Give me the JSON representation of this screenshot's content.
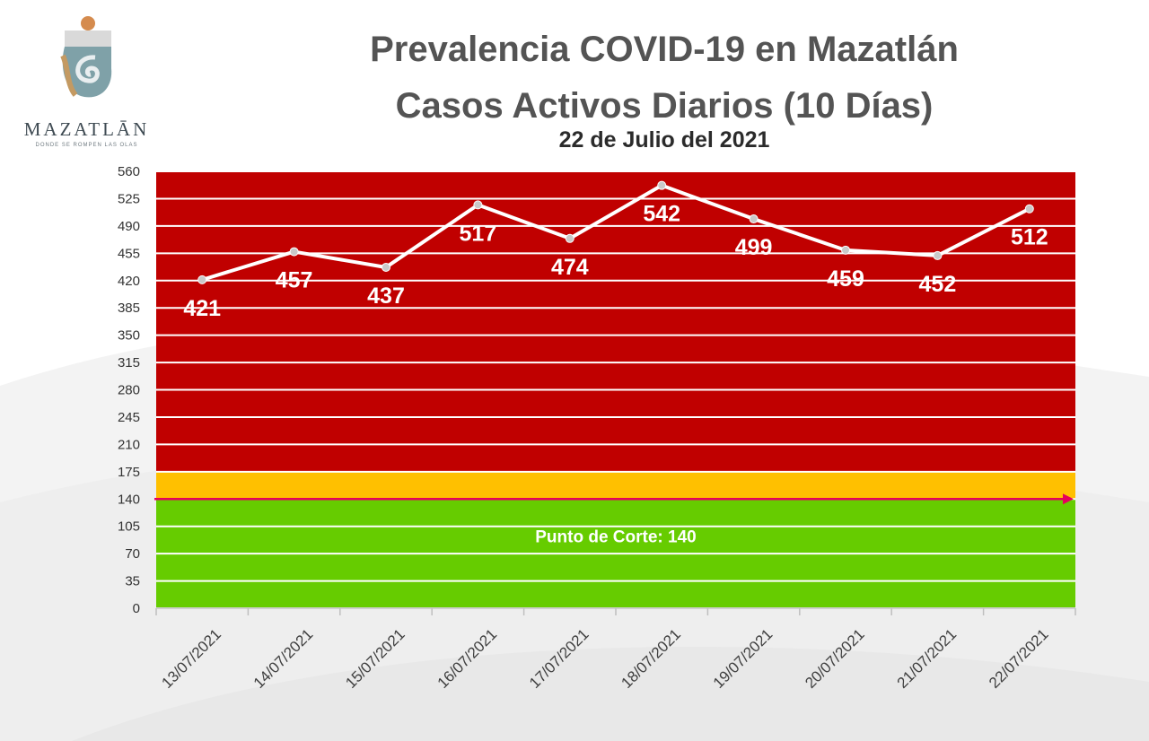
{
  "logo": {
    "name": "MAZATLĀN",
    "tagline": "DONDE SE ROMPEN LAS OLAS"
  },
  "header": {
    "title": "Prevalencia COVID-19 en Mazatlán",
    "subtitle": "Casos Activos Diarios (10 Días)",
    "date": "22 de Julio del 2021"
  },
  "colors": {
    "red_zone": "#c00000",
    "yellow_zone": "#ffc000",
    "green_zone": "#66cc00",
    "line": "#ffffff",
    "cutoff_line": "#e6005c"
  },
  "chart_data": {
    "type": "line",
    "title": "Casos Activos Diarios (10 Días)",
    "categories": [
      "13/07/2021",
      "14/07/2021",
      "15/07/2021",
      "16/07/2021",
      "17/07/2021",
      "18/07/2021",
      "19/07/2021",
      "20/07/2021",
      "21/07/2021",
      "22/07/2021"
    ],
    "series": [
      {
        "name": "Casos Activos",
        "values": [
          421,
          457,
          437,
          517,
          474,
          542,
          499,
          459,
          452,
          512
        ]
      }
    ],
    "yticks": [
      0,
      35,
      70,
      105,
      140,
      175,
      210,
      245,
      280,
      315,
      350,
      385,
      420,
      455,
      490,
      525,
      560
    ],
    "ylim": [
      0,
      560
    ],
    "bands": [
      {
        "name": "red",
        "from": 175,
        "to": 560
      },
      {
        "name": "yellow",
        "from": 140,
        "to": 175
      },
      {
        "name": "green",
        "from": 0,
        "to": 140
      }
    ],
    "cutoff": {
      "value": 140,
      "label": "Punto de Corte: 140"
    },
    "label_positions": [
      "below",
      "below",
      "below",
      "below",
      "below",
      "below",
      "below",
      "below",
      "below",
      "below"
    ]
  }
}
